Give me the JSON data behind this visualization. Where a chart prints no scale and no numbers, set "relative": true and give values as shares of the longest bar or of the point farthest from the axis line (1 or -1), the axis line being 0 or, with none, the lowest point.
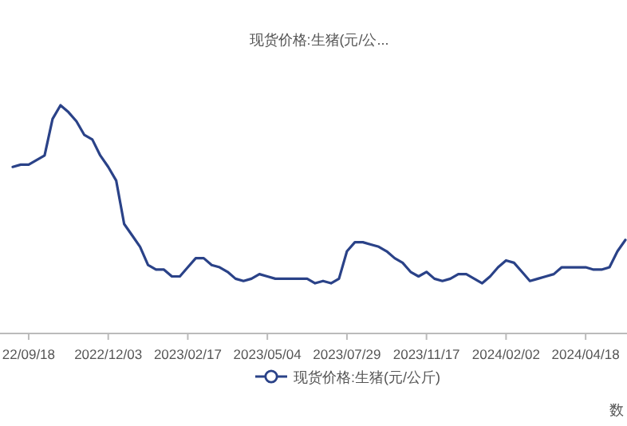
{
  "chart_data": {
    "type": "line",
    "title": "现货价格:生猪(元/公...",
    "relative": true,
    "legend": "bottom",
    "annotations": [
      "数"
    ],
    "categories": [
      null,
      null,
      "22/09/18",
      null,
      null,
      null,
      null,
      null,
      null,
      null,
      null,
      null,
      "2022/12/03",
      null,
      null,
      null,
      null,
      null,
      null,
      null,
      null,
      null,
      "2023/02/17",
      null,
      null,
      null,
      null,
      null,
      null,
      null,
      null,
      null,
      "2023/05/04",
      null,
      null,
      null,
      null,
      null,
      null,
      null,
      null,
      null,
      "2023/07/29",
      null,
      null,
      null,
      null,
      null,
      null,
      null,
      null,
      null,
      "2023/11/17",
      null,
      null,
      null,
      null,
      null,
      null,
      null,
      null,
      null,
      "2024/02/02",
      null,
      null,
      null,
      null,
      null,
      null,
      null,
      null,
      null,
      "2024/04/18",
      null,
      null,
      null,
      null,
      null
    ],
    "series": [
      {
        "name": "现货价格:生猪(元/公斤)",
        "color": "#2a4288",
        "values": [
          0.73,
          0.74,
          0.74,
          0.76,
          0.78,
          0.94,
          1,
          0.97,
          0.93,
          0.87,
          0.85,
          0.78,
          0.73,
          0.67,
          0.48,
          0.43,
          0.38,
          0.3,
          0.28,
          0.28,
          0.25,
          0.25,
          0.29,
          0.33,
          0.33,
          0.3,
          0.29,
          0.27,
          0.24,
          0.23,
          0.24,
          0.26,
          0.25,
          0.24,
          0.24,
          0.24,
          0.24,
          0.24,
          0.22,
          0.23,
          0.22,
          0.24,
          0.36,
          0.4,
          0.4,
          0.39,
          0.38,
          0.36,
          0.33,
          0.31,
          0.27,
          0.25,
          0.27,
          0.24,
          0.23,
          0.24,
          0.26,
          0.26,
          0.24,
          0.22,
          0.25,
          0.29,
          0.32,
          0.31,
          0.27,
          0.23,
          0.24,
          0.25,
          0.26,
          0.29,
          0.29,
          0.29,
          0.29,
          0.28,
          0.28,
          0.29,
          0.36,
          0.41
        ]
      }
    ]
  }
}
